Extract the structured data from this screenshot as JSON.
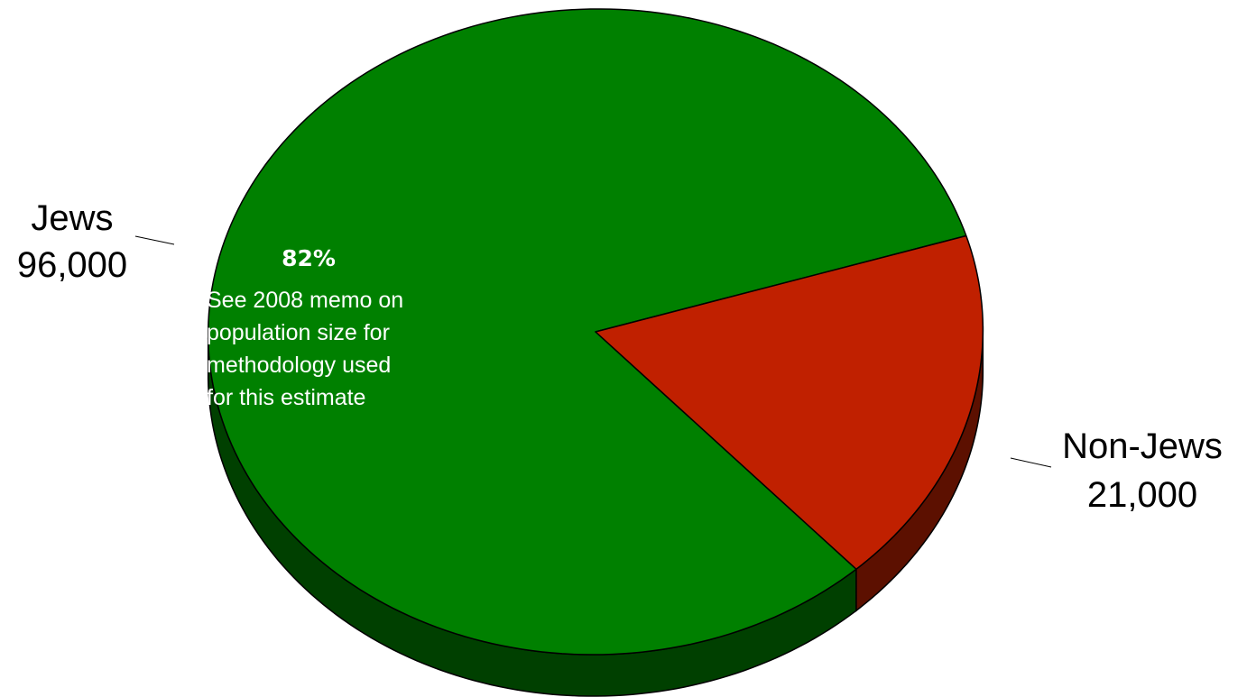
{
  "chart_data": {
    "type": "pie",
    "style": "3d",
    "title": "",
    "slices": [
      {
        "category": "Jews",
        "value": 96000,
        "value_label": "96,000",
        "percent_label": "82%",
        "color": "#008000",
        "side_color": "#004000"
      },
      {
        "category": "Non-Jews",
        "value": 21000,
        "value_label": "21,000",
        "color": "#C02000",
        "side_color": "#5C1000"
      }
    ],
    "annotation": [
      "See 2008 memo on",
      "population size for",
      "methodology used",
      "for this estimate"
    ],
    "legend": "none"
  }
}
